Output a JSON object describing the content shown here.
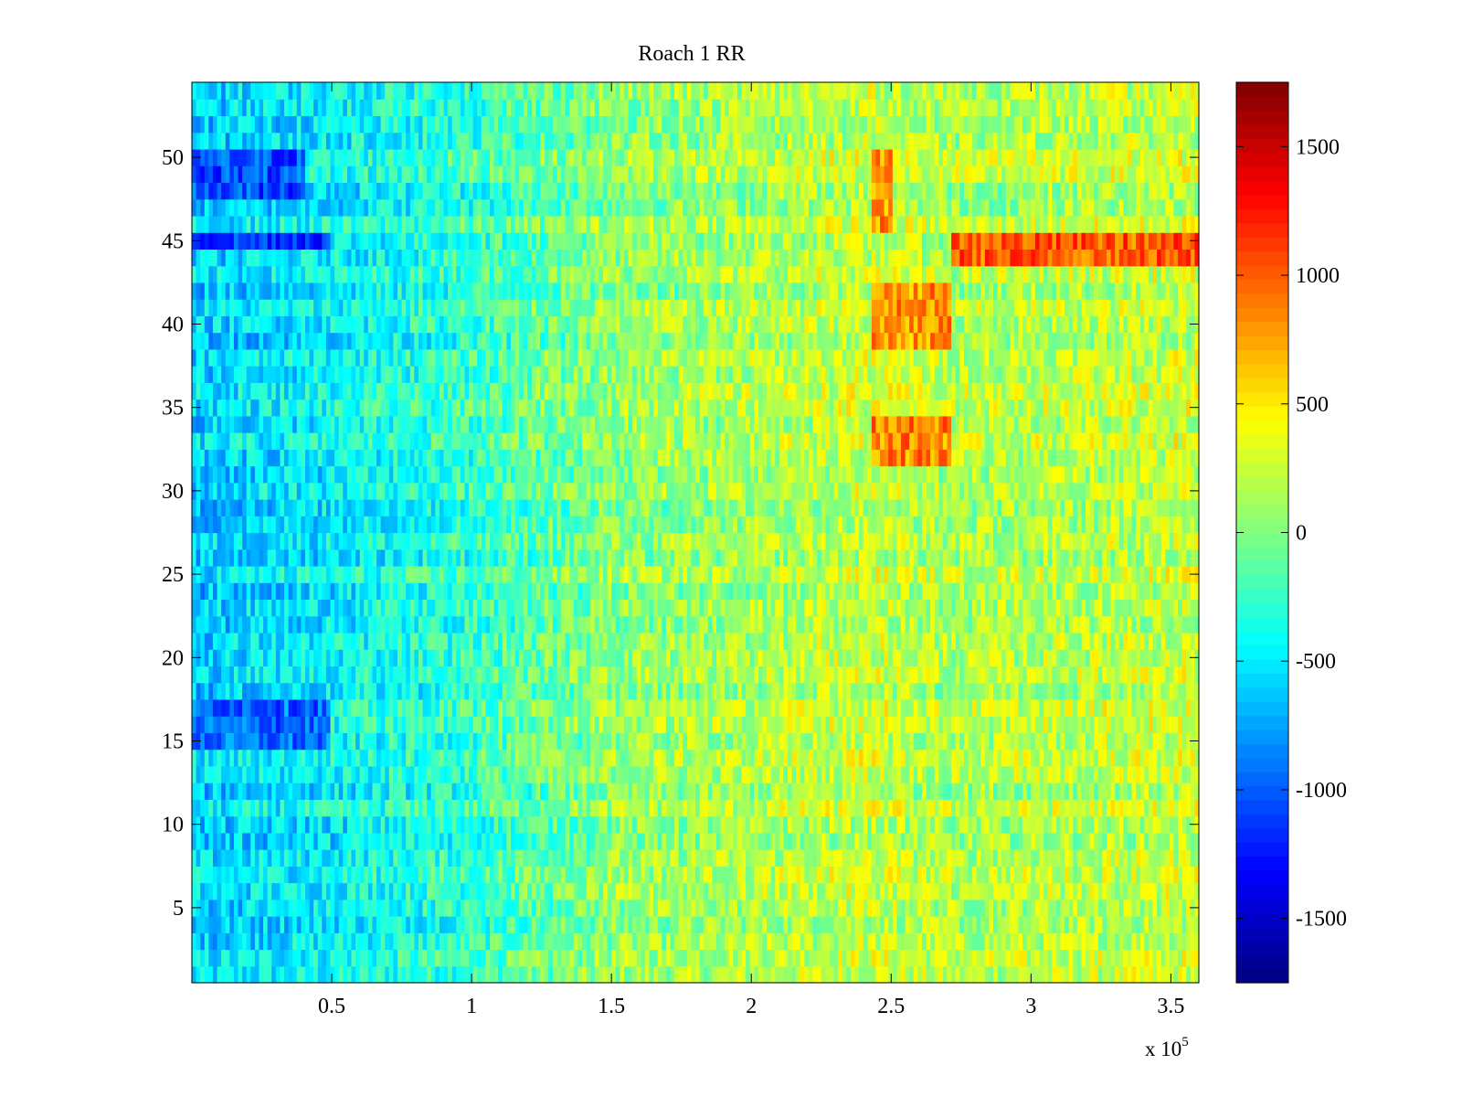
{
  "chart_data": {
    "type": "heatmap",
    "title": "Roach 1 RR",
    "xlabel": "",
    "ylabel": "",
    "x_range": [
      0,
      360000
    ],
    "y_range": [
      0.5,
      54.5
    ],
    "rows": 54,
    "x_ticks": [
      {
        "value": 50000,
        "label": "0.5"
      },
      {
        "value": 100000,
        "label": "1"
      },
      {
        "value": 150000,
        "label": "1.5"
      },
      {
        "value": 200000,
        "label": "2"
      },
      {
        "value": 250000,
        "label": "2.5"
      },
      {
        "value": 300000,
        "label": "3"
      },
      {
        "value": 350000,
        "label": "3.5"
      }
    ],
    "x_multiplier_label": "x 10",
    "x_multiplier_exponent": "5",
    "y_ticks": [
      {
        "value": 5,
        "label": "5"
      },
      {
        "value": 10,
        "label": "10"
      },
      {
        "value": 15,
        "label": "15"
      },
      {
        "value": 20,
        "label": "20"
      },
      {
        "value": 25,
        "label": "25"
      },
      {
        "value": 30,
        "label": "30"
      },
      {
        "value": 35,
        "label": "35"
      },
      {
        "value": 40,
        "label": "40"
      },
      {
        "value": 45,
        "label": "45"
      },
      {
        "value": 50,
        "label": "50"
      }
    ],
    "colorbar": {
      "colormap": "jet",
      "range": [
        -1750,
        1750
      ],
      "ticks": [
        {
          "value": 1500,
          "label": "1500"
        },
        {
          "value": 1000,
          "label": "1000"
        },
        {
          "value": 500,
          "label": "500"
        },
        {
          "value": 0,
          "label": "0"
        },
        {
          "value": -500,
          "label": "-500"
        },
        {
          "value": -1000,
          "label": "-1000"
        },
        {
          "value": -1500,
          "label": "-1500"
        }
      ]
    },
    "trend": {
      "x_stops": [
        0,
        50000,
        100000,
        150000,
        200000,
        243000,
        272000,
        360000
      ],
      "mean_values": [
        -600,
        -450,
        -250,
        50,
        150,
        250,
        150,
        250
      ],
      "noise_amplitude": 300
    },
    "highlight_bands": [
      {
        "row_from": 44,
        "row_to": 45,
        "x_from": 272000,
        "x_to": 360000,
        "value": 1000
      },
      {
        "row_from": 39,
        "row_to": 42,
        "x_from": 243000,
        "x_to": 272000,
        "value": 800
      },
      {
        "row_from": 32,
        "row_to": 34,
        "x_from": 243000,
        "x_to": 272000,
        "value": 850
      },
      {
        "row_from": 46,
        "row_to": 50,
        "x_from": 243000,
        "x_to": 250000,
        "value": 800
      },
      {
        "row_from": 45,
        "row_to": 45,
        "x_from": 0,
        "x_to": 50000,
        "value": -1100
      },
      {
        "row_from": 48,
        "row_to": 50,
        "x_from": 0,
        "x_to": 40000,
        "value": -1050
      },
      {
        "row_from": 15,
        "row_to": 17,
        "x_from": 0,
        "x_to": 50000,
        "value": -950
      }
    ]
  }
}
